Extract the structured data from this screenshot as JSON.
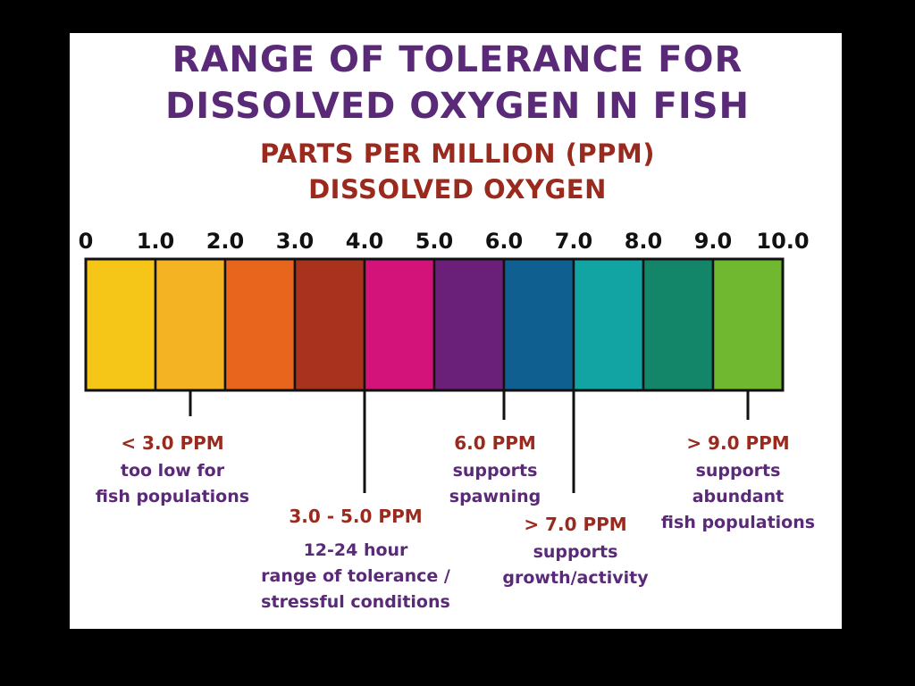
{
  "chart_data": {
    "type": "bar",
    "title_lines": [
      "RANGE OF TOLERANCE FOR",
      "DISSOLVED OXYGEN IN FISH"
    ],
    "subtitle_lines": [
      "PARTS PER MILLION (PPM)",
      "DISSOLVED OXYGEN"
    ],
    "tick_labels": [
      "0",
      "1.0",
      "2.0",
      "3.0",
      "4.0",
      "5.0",
      "6.0",
      "7.0",
      "8.0",
      "9.0",
      "10.0"
    ],
    "xlim": [
      0,
      10
    ],
    "segments": [
      {
        "from": 0,
        "to": 1,
        "color": "#f5c518"
      },
      {
        "from": 1,
        "to": 2,
        "color": "#f3b323"
      },
      {
        "from": 2,
        "to": 3,
        "color": "#e8651e"
      },
      {
        "from": 3,
        "to": 4,
        "color": "#a8321e"
      },
      {
        "from": 4,
        "to": 5,
        "color": "#d4137a"
      },
      {
        "from": 5,
        "to": 6,
        "color": "#6a1f78"
      },
      {
        "from": 6,
        "to": 7,
        "color": "#0f6090"
      },
      {
        "from": 7,
        "to": 8,
        "color": "#12a3a3"
      },
      {
        "from": 8,
        "to": 9,
        "color": "#13866a"
      },
      {
        "from": 9,
        "to": 10,
        "color": "#6fb830"
      }
    ],
    "annotations": [
      {
        "at": 1.5,
        "label": "< 3.0 PPM",
        "lines": [
          "too low for",
          "fish populations"
        ]
      },
      {
        "at": 4.0,
        "label": "3.0 - 5.0 PPM",
        "lines": [
          "12-24 hour",
          "range of tolerance /",
          "stressful conditions"
        ]
      },
      {
        "at": 6.0,
        "label": "6.0 PPM",
        "lines": [
          "supports",
          "spawning"
        ]
      },
      {
        "at": 7.0,
        "label": "> 7.0 PPM",
        "lines": [
          "supports",
          "growth/activity"
        ]
      },
      {
        "at": 9.5,
        "label": "> 9.0 PPM",
        "lines": [
          "supports",
          "abundant",
          "fish populations"
        ]
      }
    ]
  }
}
